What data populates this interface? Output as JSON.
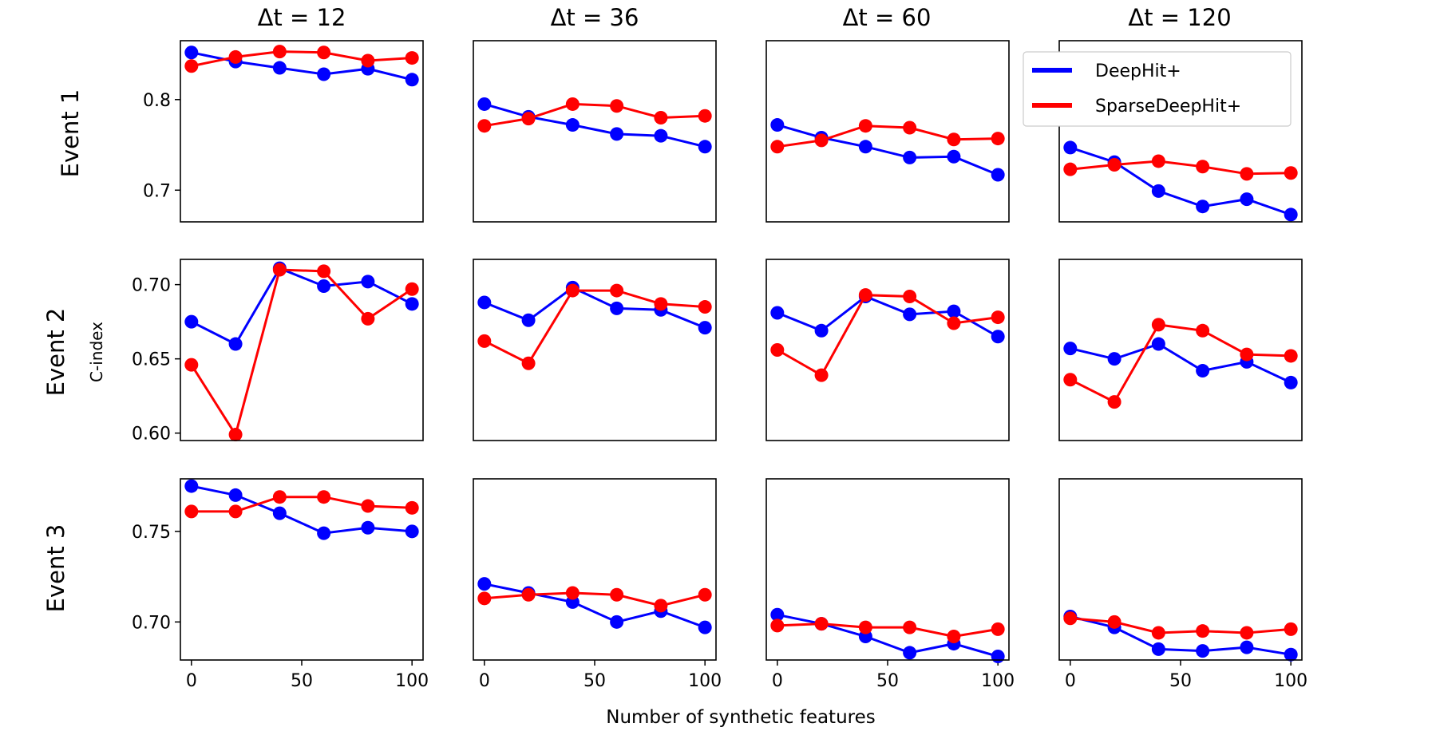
{
  "figure": {
    "xlabel": "Number of synthetic features",
    "ylabel": "C-index",
    "columns": [
      "Δt = 12",
      "Δt = 36",
      "Δt = 60",
      "Δt = 120"
    ],
    "rows": [
      "Event 1",
      "Event 2",
      "Event 3"
    ]
  },
  "legend": {
    "placement": "top-right",
    "items": [
      {
        "label": "DeepHit+",
        "color": "#0000ff"
      },
      {
        "label": "SparseDeepHit+",
        "color": "#ff0000"
      }
    ]
  },
  "chart_data": {
    "type": "line",
    "x": [
      0,
      20,
      40,
      60,
      80,
      100
    ],
    "xticks": [
      0,
      50,
      100
    ],
    "xlim": [
      -5,
      105
    ],
    "series_names": [
      "DeepHit+",
      "SparseDeepHit+"
    ],
    "series_colors": [
      "#0000ff",
      "#ff0000"
    ],
    "rows": [
      {
        "name": "Event 1",
        "ylim": [
          0.665,
          0.865
        ],
        "yticks": [
          0.7,
          0.8
        ],
        "ytick_labels": [
          "0.7",
          "0.8"
        ],
        "panels": [
          {
            "title": "Δt = 12",
            "series": [
              [
                0.852,
                0.842,
                0.835,
                0.828,
                0.834,
                0.822
              ],
              [
                0.837,
                0.847,
                0.853,
                0.852,
                0.843,
                0.846
              ]
            ]
          },
          {
            "title": "Δt = 36",
            "series": [
              [
                0.795,
                0.781,
                0.772,
                0.762,
                0.76,
                0.748
              ],
              [
                0.771,
                0.779,
                0.795,
                0.793,
                0.78,
                0.782
              ]
            ]
          },
          {
            "title": "Δt = 60",
            "series": [
              [
                0.772,
                0.758,
                0.748,
                0.736,
                0.737,
                0.717
              ],
              [
                0.748,
                0.755,
                0.771,
                0.769,
                0.756,
                0.757
              ]
            ]
          },
          {
            "title": "Δt = 120",
            "series": [
              [
                0.747,
                0.731,
                0.699,
                0.682,
                0.69,
                0.673
              ],
              [
                0.723,
                0.728,
                0.732,
                0.726,
                0.718,
                0.719
              ]
            ]
          }
        ]
      },
      {
        "name": "Event 2",
        "ylim": [
          0.595,
          0.717
        ],
        "yticks": [
          0.6,
          0.65,
          0.7
        ],
        "ytick_labels": [
          "0.60",
          "0.65",
          "0.70"
        ],
        "panels": [
          {
            "title": "Δt = 12",
            "series": [
              [
                0.675,
                0.66,
                0.711,
                0.699,
                0.702,
                0.687
              ],
              [
                0.646,
                0.599,
                0.71,
                0.709,
                0.677,
                0.697
              ]
            ]
          },
          {
            "title": "Δt = 36",
            "series": [
              [
                0.688,
                0.676,
                0.698,
                0.684,
                0.683,
                0.671
              ],
              [
                0.662,
                0.647,
                0.696,
                0.696,
                0.687,
                0.685
              ]
            ]
          },
          {
            "title": "Δt = 60",
            "series": [
              [
                0.681,
                0.669,
                0.692,
                0.68,
                0.682,
                0.665
              ],
              [
                0.656,
                0.639,
                0.693,
                0.692,
                0.674,
                0.678
              ]
            ]
          },
          {
            "title": "Δt = 120",
            "series": [
              [
                0.657,
                0.65,
                0.66,
                0.642,
                0.648,
                0.634
              ],
              [
                0.636,
                0.621,
                0.673,
                0.669,
                0.653,
                0.652
              ]
            ]
          }
        ]
      },
      {
        "name": "Event 3",
        "ylim": [
          0.679,
          0.779
        ],
        "yticks": [
          0.7,
          0.75
        ],
        "ytick_labels": [
          "0.70",
          "0.75"
        ],
        "panels": [
          {
            "title": "Δt = 12",
            "series": [
              [
                0.775,
                0.77,
                0.76,
                0.749,
                0.752,
                0.75
              ],
              [
                0.761,
                0.761,
                0.769,
                0.769,
                0.764,
                0.763
              ]
            ]
          },
          {
            "title": "Δt = 36",
            "series": [
              [
                0.721,
                0.716,
                0.711,
                0.7,
                0.706,
                0.697
              ],
              [
                0.713,
                0.715,
                0.716,
                0.715,
                0.709,
                0.715
              ]
            ]
          },
          {
            "title": "Δt = 60",
            "series": [
              [
                0.704,
                0.699,
                0.692,
                0.683,
                0.688,
                0.681
              ],
              [
                0.698,
                0.699,
                0.697,
                0.697,
                0.692,
                0.696
              ]
            ]
          },
          {
            "title": "Δt = 120",
            "series": [
              [
                0.703,
                0.697,
                0.685,
                0.684,
                0.686,
                0.682
              ],
              [
                0.702,
                0.7,
                0.694,
                0.695,
                0.694,
                0.696
              ]
            ]
          }
        ]
      }
    ]
  }
}
